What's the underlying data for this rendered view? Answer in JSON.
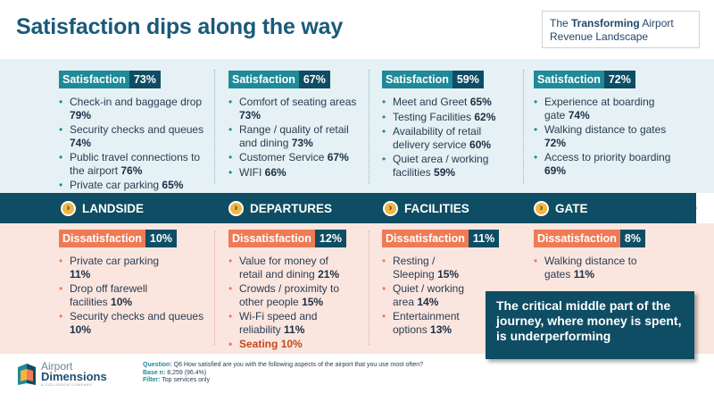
{
  "title": "Satisfaction dips along the way",
  "subtitle": {
    "prefix": "The ",
    "bold": "Transforming",
    "suffix": " Airport",
    "line2": "Revenue Landscape"
  },
  "stages": [
    {
      "name": "LANDSIDE",
      "icon": "chevron-right-icon",
      "satisfaction": {
        "label": "Satisfaction",
        "pct": "73%",
        "items": [
          {
            "text": "Check-in and baggage drop",
            "value": "79%"
          },
          {
            "text": "Security checks and queues",
            "value": "74%"
          },
          {
            "text": "Public travel connections to the airport",
            "value": "76%"
          },
          {
            "text": "Private car parking",
            "value": "65%"
          }
        ]
      },
      "dissatisfaction": {
        "label": "Dissatisfaction",
        "pct": "10%",
        "items": [
          {
            "text": "Private car parking",
            "value": "11%"
          },
          {
            "text": "Drop off farewell facilities",
            "value": "10%"
          },
          {
            "text": "Security checks and queues",
            "value": "10%"
          }
        ]
      }
    },
    {
      "name": "DEPARTURES",
      "icon": "chevron-right-icon",
      "satisfaction": {
        "label": "Satisfaction",
        "pct": "67%",
        "items": [
          {
            "text": "Comfort of seating areas",
            "value": "73%"
          },
          {
            "text": "Range / quality of retail and dining",
            "value": "73%"
          },
          {
            "text": "Customer Service",
            "value": "67%"
          },
          {
            "text": "WIFI",
            "value": "66%"
          }
        ]
      },
      "dissatisfaction": {
        "label": "Dissatisfaction",
        "pct": "12%",
        "items": [
          {
            "text": "Value for money of retail  and dining",
            "value": "21%"
          },
          {
            "text": "Crowds / proximity to other people",
            "value": "15%"
          },
          {
            "text": "Wi-Fi speed and reliability",
            "value": "11%"
          },
          {
            "text": "Seating",
            "value": "10%"
          }
        ]
      }
    },
    {
      "name": "FACILITIES",
      "icon": "chevron-right-icon",
      "satisfaction": {
        "label": "Satisfaction",
        "pct": "59%",
        "items": [
          {
            "text": "Meet and Greet",
            "value": "65%"
          },
          {
            "text": "Testing Facilities",
            "value": "62%"
          },
          {
            "text": "Availability of retail delivery service",
            "value": "60%"
          },
          {
            "text": "Quiet area / working facilities",
            "value": "59%"
          }
        ]
      },
      "dissatisfaction": {
        "label": "Dissatisfaction",
        "pct": "11%",
        "items": [
          {
            "text": "Resting / Sleeping",
            "value": "15%"
          },
          {
            "text": "Quiet / working area",
            "value": "14%"
          },
          {
            "text": "Entertainment options",
            "value": "13%"
          }
        ]
      }
    },
    {
      "name": "GATE",
      "icon": "chevron-right-icon",
      "satisfaction": {
        "label": "Satisfaction",
        "pct": "72%",
        "items": [
          {
            "text": "Experience at boarding gate",
            "value": "74%"
          },
          {
            "text": "Walking distance to gates",
            "value": "72%"
          },
          {
            "text": "Access to priority boarding",
            "value": "69%"
          }
        ]
      },
      "dissatisfaction": {
        "label": "Dissatisfaction",
        "pct": "8%",
        "items": [
          {
            "text": "Walking distance to gates",
            "value": "11%"
          }
        ]
      }
    }
  ],
  "callout": "The critical middle part of the journey, where money is spent, is underperforming",
  "footnote": {
    "question_label": "Question:",
    "question": "Q6 How satisfied are you with the following aspects of the airport that you use most often?",
    "base_label": "Base n:",
    "base": "8,259 (96.4%)",
    "filter_label": "Filter:",
    "filter": "Top services  only"
  },
  "logo": {
    "line1": "Airport",
    "line2": "Dimensions",
    "line3": "A COLLINSON COMPANY",
    "icon": "airport-dimensions-logo-icon"
  },
  "colors": {
    "teal": "#1f8a98",
    "navy": "#0e4d63",
    "orange": "#ee7b55",
    "satBand": "#e5f1f4",
    "disBand": "#fbe6df"
  }
}
